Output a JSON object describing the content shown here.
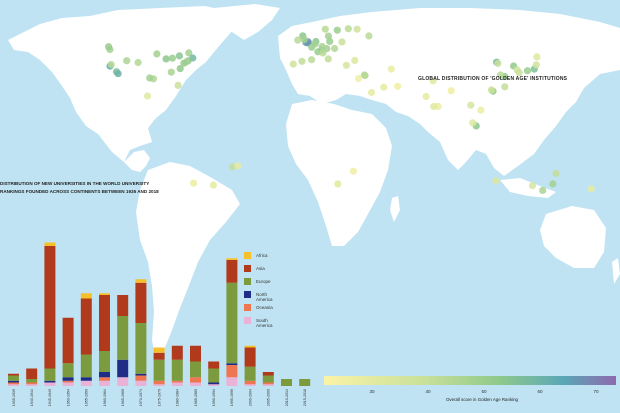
{
  "map": {
    "title": "GLOBAL DISTRIBUTION OF 'GOLDEN AGE' INSTITUTIONS",
    "colorbar_label": "Overall score in Golden Age Ranking",
    "colorbar_ticks": [
      "30",
      "40",
      "50",
      "60",
      "70"
    ],
    "colors": {
      "ocean": "#bfe3f3",
      "land": "#ffffff",
      "low": "#fbf3a6",
      "mid": "#8fc98b",
      "high": "#5aa7b6",
      "top": "#8e69ad"
    }
  },
  "chart_data": [
    {
      "type": "bar",
      "title_line1": "DISTRIBUTION OF NEW UNIVERSITIES IN THE WORLD UNIVERSITY",
      "title_line2": "RANKINGS FOUNDED ACROSS CONTINENTS BETWEEN 1935 AND 2018",
      "stacked": true,
      "categories": [
        "1935-1939",
        "1940-1944",
        "1945-1949",
        "1950-1954",
        "1955-1959",
        "1960-1964",
        "1965-1969",
        "1970-1974",
        "1975-1979",
        "1980-1984",
        "1985-1989",
        "1990-1994",
        "1995-1999",
        "2000-2004",
        "2005-2009",
        "2010-2014",
        "2015-2018"
      ],
      "series": [
        {
          "name": "South America",
          "color": "#e9b2d6",
          "values": [
            1,
            1,
            2,
            2,
            3,
            3,
            5,
            3,
            1,
            2,
            2,
            1,
            5,
            1,
            1,
            0,
            0
          ]
        },
        {
          "name": "Oceania",
          "color": "#ee7650",
          "values": [
            1,
            1,
            0,
            1,
            0,
            2,
            0,
            3,
            2,
            1,
            3,
            0,
            7,
            2,
            1,
            0,
            0
          ]
        },
        {
          "name": "North America",
          "color": "#1f2d86",
          "values": [
            1,
            0,
            1,
            2,
            2,
            3,
            10,
            1,
            0,
            0,
            0,
            1,
            1,
            0,
            0,
            0,
            0
          ]
        },
        {
          "name": "Europe",
          "color": "#7c9a3e",
          "values": [
            3,
            2,
            7,
            8,
            13,
            12,
            25,
            29,
            12,
            12,
            9,
            8,
            46,
            8,
            4,
            4,
            4
          ]
        },
        {
          "name": "Asia",
          "color": "#b13a1c",
          "values": [
            1,
            6,
            70,
            26,
            32,
            32,
            12,
            23,
            4,
            8,
            9,
            4,
            13,
            11,
            2,
            0,
            0
          ]
        },
        {
          "name": "Africa",
          "color": "#f5c02a",
          "values": [
            0,
            0,
            2,
            0,
            3,
            1,
            0,
            2,
            3,
            0,
            0,
            0,
            1,
            1,
            0,
            0,
            0
          ]
        }
      ],
      "legend_order": [
        "Africa",
        "Asia",
        "Europe",
        "North America",
        "Oceania",
        "South America"
      ],
      "legend_position": "right"
    },
    {
      "type": "scatter",
      "description_kind": "bubble map",
      "x_name": "longitude",
      "y_name": "latitude",
      "value_name": "Overall score in Golden Age Ranking",
      "value_range": [
        22,
        76
      ],
      "points": [
        {
          "lon": -122.3,
          "lat": 47.6,
          "score": 50
        },
        {
          "lon": -123.1,
          "lat": 49.3,
          "score": 52
        },
        {
          "lon": -122.2,
          "lat": 37.5,
          "score": 65
        },
        {
          "lon": -121.5,
          "lat": 38.5,
          "score": 45
        },
        {
          "lon": -118.2,
          "lat": 34.1,
          "score": 58
        },
        {
          "lon": -117.2,
          "lat": 32.9,
          "score": 62
        },
        {
          "lon": -111.9,
          "lat": 40.8,
          "score": 48
        },
        {
          "lon": -104.9,
          "lat": 39.7,
          "score": 46
        },
        {
          "lon": -93.3,
          "lat": 44.9,
          "score": 50
        },
        {
          "lon": -87.6,
          "lat": 41.9,
          "score": 55
        },
        {
          "lon": -83.7,
          "lat": 42.3,
          "score": 52
        },
        {
          "lon": -79.4,
          "lat": 43.7,
          "score": 56
        },
        {
          "lon": -73.6,
          "lat": 45.5,
          "score": 50
        },
        {
          "lon": -71.1,
          "lat": 42.4,
          "score": 60
        },
        {
          "lon": -74.0,
          "lat": 40.7,
          "score": 55
        },
        {
          "lon": -75.2,
          "lat": 40.0,
          "score": 48
        },
        {
          "lon": -76.6,
          "lat": 39.3,
          "score": 52
        },
        {
          "lon": -78.9,
          "lat": 36.0,
          "score": 54
        },
        {
          "lon": -84.4,
          "lat": 33.8,
          "score": 48
        },
        {
          "lon": -95.4,
          "lat": 29.8,
          "score": 46
        },
        {
          "lon": -97.7,
          "lat": 30.3,
          "score": 50
        },
        {
          "lon": -80.2,
          "lat": 25.8,
          "score": 40
        },
        {
          "lon": -3.2,
          "lat": 55.9,
          "score": 55
        },
        {
          "lon": -0.1,
          "lat": 51.5,
          "score": 62
        },
        {
          "lon": -1.3,
          "lat": 51.8,
          "score": 68
        },
        {
          "lon": 0.1,
          "lat": 52.2,
          "score": 70
        },
        {
          "lon": -2.2,
          "lat": 53.5,
          "score": 50
        },
        {
          "lon": -6.3,
          "lat": 53.3,
          "score": 45
        },
        {
          "lon": 2.3,
          "lat": 48.9,
          "score": 52
        },
        {
          "lon": 4.9,
          "lat": 52.4,
          "score": 55
        },
        {
          "lon": 4.4,
          "lat": 51.0,
          "score": 50
        },
        {
          "lon": 8.5,
          "lat": 47.4,
          "score": 60
        },
        {
          "lon": 6.1,
          "lat": 46.2,
          "score": 52
        },
        {
          "lon": 11.6,
          "lat": 48.1,
          "score": 50
        },
        {
          "lon": 13.4,
          "lat": 52.5,
          "score": 52
        },
        {
          "lon": 8.7,
          "lat": 49.4,
          "score": 48
        },
        {
          "lon": 12.6,
          "lat": 55.7,
          "score": 50
        },
        {
          "lon": 18.1,
          "lat": 59.3,
          "score": 52
        },
        {
          "lon": 10.7,
          "lat": 59.9,
          "score": 45
        },
        {
          "lon": 24.9,
          "lat": 60.2,
          "score": 44
        },
        {
          "lon": 16.4,
          "lat": 48.2,
          "score": 46
        },
        {
          "lon": 21.0,
          "lat": 52.2,
          "score": 40
        },
        {
          "lon": 37.6,
          "lat": 55.8,
          "score": 44
        },
        {
          "lon": 30.3,
          "lat": 59.9,
          "score": 38
        },
        {
          "lon": 12.5,
          "lat": 41.9,
          "score": 42
        },
        {
          "lon": 9.2,
          "lat": 45.5,
          "score": 45
        },
        {
          "lon": -3.7,
          "lat": 40.4,
          "score": 42
        },
        {
          "lon": 2.2,
          "lat": 41.4,
          "score": 44
        },
        {
          "lon": -9.1,
          "lat": 38.7,
          "score": 38
        },
        {
          "lon": 23.7,
          "lat": 38.0,
          "score": 36
        },
        {
          "lon": 28.9,
          "lat": 41.0,
          "score": 34
        },
        {
          "lon": 35.2,
          "lat": 31.8,
          "score": 48
        },
        {
          "lon": 34.8,
          "lat": 32.1,
          "score": 45
        },
        {
          "lon": 46.7,
          "lat": 24.7,
          "score": 30
        },
        {
          "lon": 51.4,
          "lat": 35.7,
          "score": 28
        },
        {
          "lon": 55.3,
          "lat": 25.3,
          "score": 26
        },
        {
          "lon": 77.2,
          "lat": 28.6,
          "score": 32
        },
        {
          "lon": 72.9,
          "lat": 19.1,
          "score": 30
        },
        {
          "lon": 80.3,
          "lat": 13.1,
          "score": 28
        },
        {
          "lon": 77.6,
          "lat": 13.0,
          "score": 32
        },
        {
          "lon": 88.4,
          "lat": 22.6,
          "score": 26
        },
        {
          "lon": 103.8,
          "lat": 1.3,
          "score": 55
        },
        {
          "lon": 101.7,
          "lat": 3.1,
          "score": 34
        },
        {
          "lon": 100.5,
          "lat": 13.8,
          "score": 36
        },
        {
          "lon": 106.7,
          "lat": 10.8,
          "score": 28
        },
        {
          "lon": 114.2,
          "lat": 22.3,
          "score": 54
        },
        {
          "lon": 113.3,
          "lat": 23.1,
          "score": 40
        },
        {
          "lon": 121.5,
          "lat": 25.0,
          "score": 42
        },
        {
          "lon": 121.5,
          "lat": 31.2,
          "score": 52
        },
        {
          "lon": 118.8,
          "lat": 32.1,
          "score": 44
        },
        {
          "lon": 116.4,
          "lat": 39.9,
          "score": 60
        },
        {
          "lon": 117.2,
          "lat": 39.1,
          "score": 40
        },
        {
          "lon": 126.9,
          "lat": 37.6,
          "score": 54
        },
        {
          "lon": 129.1,
          "lat": 35.2,
          "score": 38
        },
        {
          "lon": 139.7,
          "lat": 35.7,
          "score": 58
        },
        {
          "lon": 135.5,
          "lat": 34.7,
          "score": 52
        },
        {
          "lon": 130.4,
          "lat": 33.6,
          "score": 40
        },
        {
          "lon": 141.3,
          "lat": 43.1,
          "score": 34
        },
        {
          "lon": 140.9,
          "lat": 38.3,
          "score": 38
        },
        {
          "lon": 151.2,
          "lat": -33.9,
          "score": 50
        },
        {
          "lon": 144.9,
          "lat": -37.8,
          "score": 48
        },
        {
          "lon": 153.0,
          "lat": -27.5,
          "score": 42
        },
        {
          "lon": 138.6,
          "lat": -34.9,
          "score": 36
        },
        {
          "lon": 115.9,
          "lat": -32.0,
          "score": 34
        },
        {
          "lon": 174.8,
          "lat": -36.9,
          "score": 30
        },
        {
          "lon": 18.4,
          "lat": -33.9,
          "score": 32
        },
        {
          "lon": 28.0,
          "lat": -26.2,
          "score": 26
        },
        {
          "lon": -46.6,
          "lat": -23.5,
          "score": 42
        },
        {
          "lon": -43.2,
          "lat": -22.9,
          "score": 30
        },
        {
          "lon": -70.6,
          "lat": -33.4,
          "score": 28
        },
        {
          "lon": -58.4,
          "lat": -34.6,
          "score": 30
        },
        {
          "lon": -99.1,
          "lat": 19.4,
          "score": 32
        },
        {
          "lon": 31.2,
          "lat": 30.0,
          "score": 26
        },
        {
          "lon": 39.2,
          "lat": 21.5,
          "score": 30
        }
      ]
    }
  ]
}
